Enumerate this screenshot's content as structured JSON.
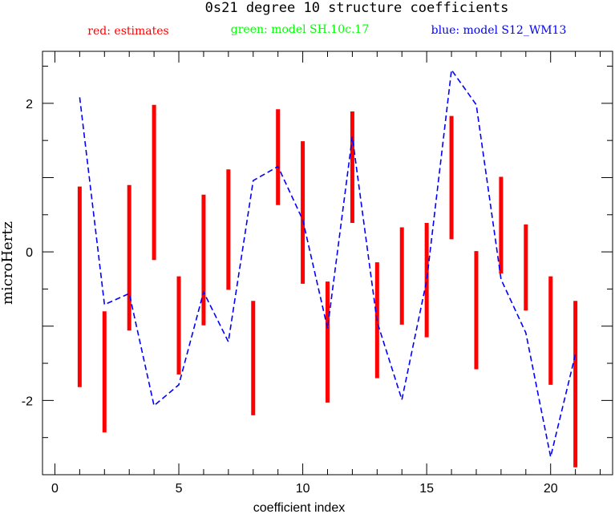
{
  "chart_data": {
    "type": "line",
    "title": "0s21 degree 10 structure coefficients",
    "legend": [
      {
        "text": "red: estimates",
        "color": "#ff0000"
      },
      {
        "text": "green: model SH.10c.17",
        "color": "#00ff00"
      },
      {
        "text": "blue: model S12_WM13",
        "color": "#0000ff"
      }
    ],
    "xlabel": "coefficient index",
    "ylabel": "microHertz",
    "xlim": [
      -0.5,
      22.5
    ],
    "ylim": [
      -3.0,
      2.7
    ],
    "x_ticks": [
      0,
      5,
      10,
      15,
      20
    ],
    "y_ticks": [
      -2,
      0,
      2
    ],
    "estimates": {
      "name": "red: estimates",
      "color": "#ff0000",
      "ranges": [
        {
          "x": 1,
          "low": -1.82,
          "high": 0.88
        },
        {
          "x": 2,
          "low": -2.43,
          "high": -0.8
        },
        {
          "x": 3,
          "low": -1.06,
          "high": 0.9
        },
        {
          "x": 4,
          "low": -0.11,
          "high": 1.98
        },
        {
          "x": 5,
          "low": -1.65,
          "high": -0.33
        },
        {
          "x": 6,
          "low": -0.99,
          "high": 0.77
        },
        {
          "x": 7,
          "low": -0.51,
          "high": 1.11
        },
        {
          "x": 8,
          "low": -2.2,
          "high": -0.66
        },
        {
          "x": 9,
          "low": 0.63,
          "high": 1.92
        },
        {
          "x": 10,
          "low": -0.43,
          "high": 1.49
        },
        {
          "x": 11,
          "low": -2.03,
          "high": -0.4
        },
        {
          "x": 12,
          "low": 0.39,
          "high": 1.89
        },
        {
          "x": 13,
          "low": -1.7,
          "high": -0.14
        },
        {
          "x": 14,
          "low": -0.98,
          "high": 0.33
        },
        {
          "x": 15,
          "low": -1.15,
          "high": 0.39
        },
        {
          "x": 16,
          "low": 0.17,
          "high": 1.83
        },
        {
          "x": 17,
          "low": -1.58,
          "high": 0.01
        },
        {
          "x": 18,
          "low": -0.29,
          "high": 1.01
        },
        {
          "x": 19,
          "low": -0.79,
          "high": 0.37
        },
        {
          "x": 20,
          "low": -1.79,
          "high": -0.33
        },
        {
          "x": 21,
          "low": -2.9,
          "high": -0.66
        }
      ]
    },
    "series": [
      {
        "name": "blue: model S12_WM13",
        "color": "#0000ff",
        "x": [
          1,
          2,
          3,
          4,
          5,
          6,
          7,
          8,
          9,
          10,
          11,
          12,
          13,
          14,
          15,
          16,
          17,
          18,
          19,
          20,
          21
        ],
        "y": [
          2.08,
          -0.71,
          -0.56,
          -2.07,
          -1.79,
          -0.54,
          -1.21,
          0.96,
          1.15,
          0.43,
          -1.03,
          1.55,
          -0.94,
          -1.99,
          -0.38,
          2.45,
          1.98,
          -0.37,
          -1.09,
          -2.76,
          -1.38
        ]
      }
    ]
  }
}
